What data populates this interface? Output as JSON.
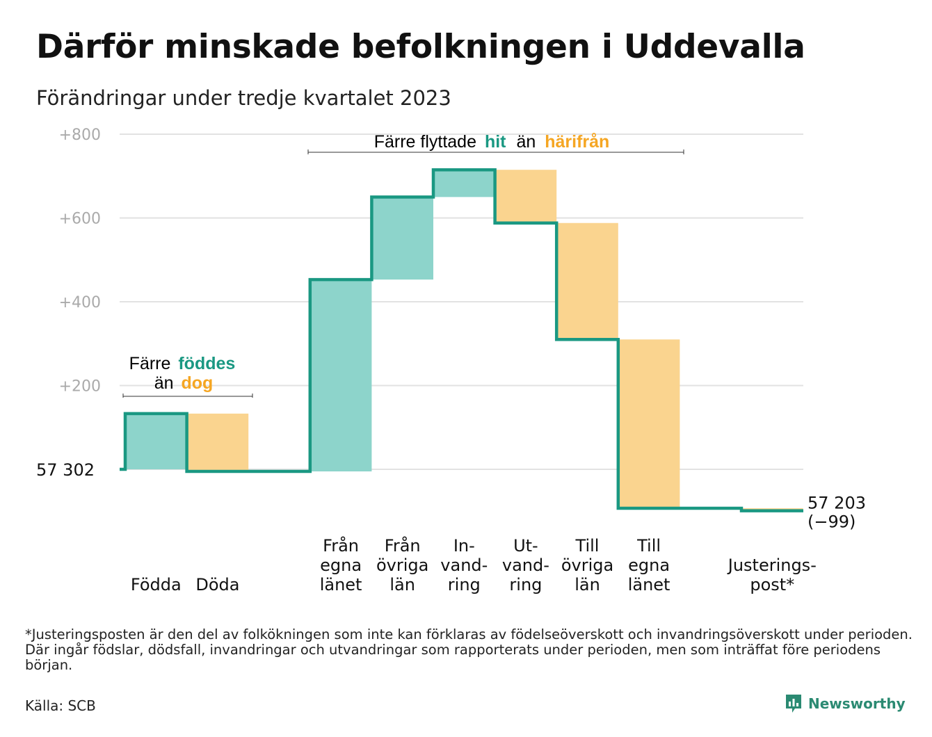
{
  "title": "Därför minskade befolkningen i Uddevalla",
  "subtitle": "Förändringar under tredje kvartalet 2023",
  "footnote": "*Justeringsposten är den del av folkökningen som inte kan förklaras av födelseöverskott och invandringsöverskott under perioden. Där ingår födslar, dödsfall, invandringar och utvandringar som rapporterats under perioden, men som inträffat före periodens början.",
  "source": "Källa: SCB",
  "brand": "Newsworthy",
  "colors": {
    "increase_fill": "#8dd4cb",
    "decrease_fill": "#fad48f",
    "line": "#1a9882",
    "teal_text": "#1a9882",
    "orange_text": "#f5a623",
    "grid": "#e2e2e2",
    "axis_text": "#aaaaaa"
  },
  "annotations": {
    "births": {
      "line1_prefix": "Färre",
      "line1_highlight": "föddes",
      "line2_prefix": "än",
      "line2_highlight": "dog"
    },
    "migration": {
      "prefix": "Färre flyttade",
      "highlight1": "hit",
      "middle": "än",
      "highlight2": "härifrån"
    }
  },
  "chart_data": {
    "type": "waterfall",
    "start_value": 57302,
    "start_label": "57  302",
    "end_value": 57203,
    "end_label_line1": "57 203",
    "end_label_line2": "(−99)",
    "ylim": [
      -100,
      800
    ],
    "yticks": [
      200,
      400,
      600,
      800
    ],
    "ytick_labels": [
      "+200",
      "+400",
      "+600",
      "+800"
    ],
    "grid": true,
    "steps": [
      {
        "label": [
          "Födda"
        ],
        "change": 133,
        "cumulative": 133
      },
      {
        "label": [
          "Döda"
        ],
        "change": -138,
        "cumulative": -5
      },
      {
        "label": [],
        "change": 0,
        "cumulative": -5
      },
      {
        "label": [
          "Från",
          "egna",
          "länet"
        ],
        "change": 458,
        "cumulative": 453
      },
      {
        "label": [
          "Från",
          "övriga",
          "län"
        ],
        "change": 197,
        "cumulative": 650
      },
      {
        "label": [
          "In-",
          "vand-",
          "ring"
        ],
        "change": 65,
        "cumulative": 715
      },
      {
        "label": [
          "Ut-",
          "vand-",
          "ring"
        ],
        "change": -127,
        "cumulative": 588
      },
      {
        "label": [
          "Till",
          "övriga",
          "län"
        ],
        "change": -278,
        "cumulative": 310
      },
      {
        "label": [
          "Till",
          "egna",
          "länet"
        ],
        "change": -403,
        "cumulative": -93
      },
      {
        "label": [],
        "change": 0,
        "cumulative": -93
      },
      {
        "label": [
          "Justerings-",
          "post*"
        ],
        "change": -6,
        "cumulative": -99
      }
    ]
  }
}
